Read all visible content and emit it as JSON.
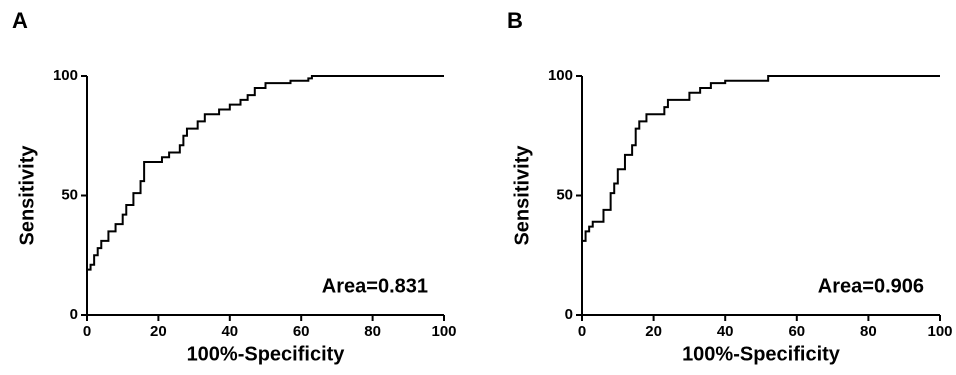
{
  "chart_data": [
    {
      "type": "line",
      "panel": "A",
      "annotation": "Area=0.831",
      "xlabel": "100%-Specificity",
      "ylabel": "Sensitivity",
      "color": "#000000",
      "x": [
        0,
        0,
        1,
        1,
        2,
        2,
        3,
        3,
        4,
        4,
        6,
        6,
        8,
        8,
        10,
        10,
        11,
        11,
        13,
        13,
        15,
        15,
        16,
        16,
        21,
        21,
        23,
        23,
        26,
        26,
        27,
        27,
        28,
        28,
        31,
        31,
        33,
        33,
        37,
        37,
        40,
        40,
        43,
        43,
        45,
        45,
        47,
        47,
        50,
        50,
        57,
        57,
        62,
        62,
        63,
        63,
        100
      ],
      "values": [
        0,
        19,
        19,
        21,
        21,
        25,
        25,
        28,
        28,
        31,
        31,
        35,
        35,
        38,
        38,
        42,
        42,
        46,
        46,
        51,
        51,
        56,
        56,
        64,
        64,
        66,
        66,
        68,
        68,
        71,
        71,
        75,
        75,
        78,
        78,
        81,
        81,
        84,
        84,
        86,
        86,
        88,
        88,
        90,
        90,
        92,
        92,
        95,
        95,
        97,
        97,
        98,
        98,
        99,
        99,
        100,
        100
      ],
      "xlim": [
        0,
        100
      ],
      "ylim": [
        0,
        100
      ],
      "xticks": [
        0,
        20,
        40,
        60,
        80,
        100
      ],
      "yticks": [
        0,
        50,
        100
      ]
    },
    {
      "type": "line",
      "panel": "B",
      "annotation": "Area=0.906",
      "xlabel": "100%-Specificity",
      "ylabel": "Sensitivity",
      "color": "#000000",
      "x": [
        0,
        0,
        1,
        1,
        2,
        2,
        3,
        3,
        6,
        6,
        8,
        8,
        9,
        9,
        10,
        10,
        12,
        12,
        14,
        14,
        15,
        15,
        16,
        16,
        18,
        18,
        23,
        23,
        24,
        24,
        30,
        30,
        33,
        33,
        36,
        36,
        40,
        40,
        52,
        52,
        100
      ],
      "values": [
        0,
        31,
        31,
        35,
        35,
        37,
        37,
        39,
        39,
        44,
        44,
        51,
        51,
        55,
        55,
        61,
        61,
        67,
        67,
        71,
        71,
        78,
        78,
        81,
        81,
        84,
        84,
        87,
        87,
        90,
        90,
        93,
        93,
        95,
        95,
        97,
        97,
        98,
        98,
        100,
        100
      ],
      "xlim": [
        0,
        100
      ],
      "ylim": [
        0,
        100
      ],
      "xticks": [
        0,
        20,
        40,
        60,
        80,
        100
      ],
      "yticks": [
        0,
        50,
        100
      ]
    }
  ]
}
